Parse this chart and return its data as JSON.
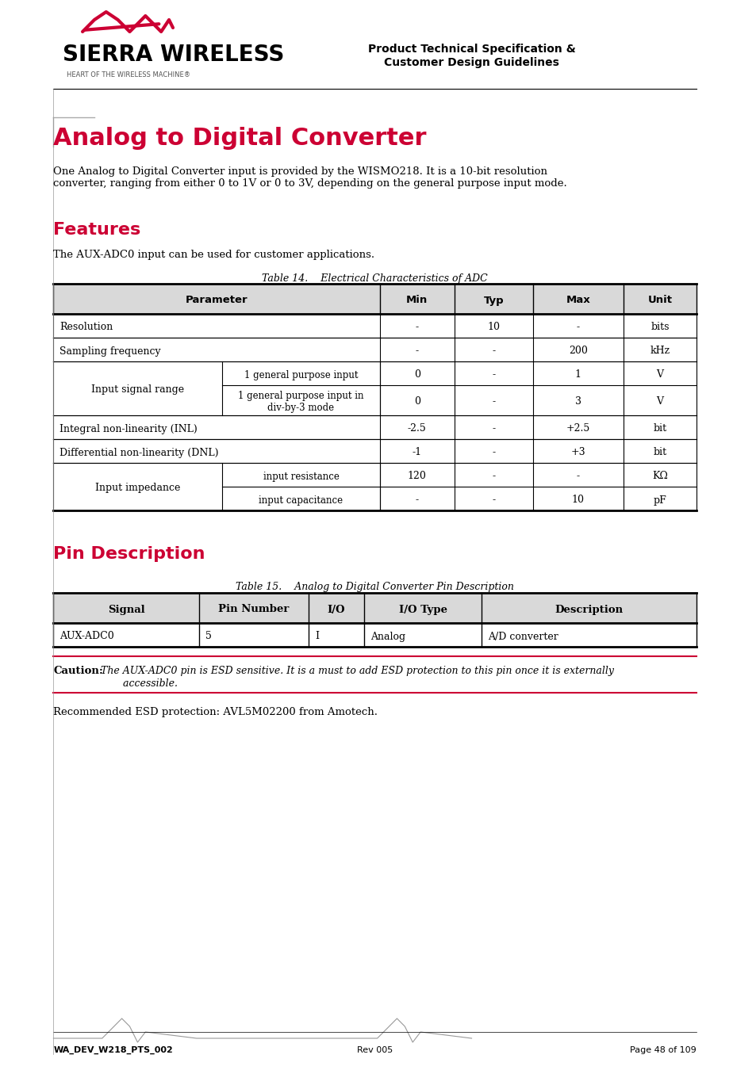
{
  "bg_color": "#ffffff",
  "header_right_line1": "Product Technical Specification &",
  "header_right_line2": "Customer Design Guidelines",
  "main_title": "Analog to Digital Converter",
  "main_title_color": "#cc0033",
  "intro_text": "One Analog to Digital Converter input is provided by the WISMO218. It is a 10-bit resolution\nconverter, ranging from either 0 to 1V or 0 to 3V, depending on the general purpose input mode.",
  "features_title": "Features",
  "features_title_color": "#cc0033",
  "features_text": "The AUX-ADC0 input can be used for customer applications.",
  "table14_caption": "Table 14.    Electrical Characteristics of ADC",
  "table14_header": [
    "Parameter",
    "Min",
    "Typ",
    "Max",
    "Unit"
  ],
  "table14_rows": [
    [
      "Resolution",
      "",
      "-",
      "10",
      "-",
      "bits"
    ],
    [
      "Sampling frequency",
      "",
      "-",
      "-",
      "200",
      "kHz"
    ],
    [
      "Input signal range",
      "1 general purpose input",
      "0",
      "-",
      "1",
      "V"
    ],
    [
      "Input signal range",
      "1 general purpose input in\ndiv-by-3 mode",
      "0",
      "-",
      "3",
      "V"
    ],
    [
      "Integral non-linearity (INL)",
      "",
      "-2.5",
      "-",
      "+2.5",
      "bit"
    ],
    [
      "Differential non-linearity (DNL)",
      "",
      "-1",
      "-",
      "+3",
      "bit"
    ],
    [
      "Input impedance",
      "input resistance",
      "120",
      "-",
      "-",
      "KΩ"
    ],
    [
      "Input impedance",
      "input capacitance",
      "-",
      "-",
      "10",
      "pF"
    ]
  ],
  "pin_title": "Pin Description",
  "pin_title_color": "#cc0033",
  "table15_caption": "Table 15.    Analog to Digital Converter Pin Description",
  "table15_header": [
    "Signal",
    "Pin Number",
    "I/O",
    "I/O Type",
    "Description"
  ],
  "table15_rows": [
    [
      "AUX-ADC0",
      "5",
      "I",
      "Analog",
      "A/D converter"
    ]
  ],
  "caution_bold": "Caution:",
  "caution_italic": "  The AUX-ADC0 pin is ESD sensitive. It is a must to add ESD protection to this pin once it is externally\n          accessible.",
  "recommended_text": "Recommended ESD protection: AVL5M02200 from Amotech.",
  "footer_left": "WA_DEV_W218_PTS_002",
  "footer_mid": "Rev 005",
  "footer_right": "Page 48 of 109",
  "header_bg": "#e8e8e8",
  "table_border": "#000000",
  "row_bg_odd": "#ffffff",
  "row_bg_even": "#ffffff",
  "caution_line_color": "#cc0033"
}
